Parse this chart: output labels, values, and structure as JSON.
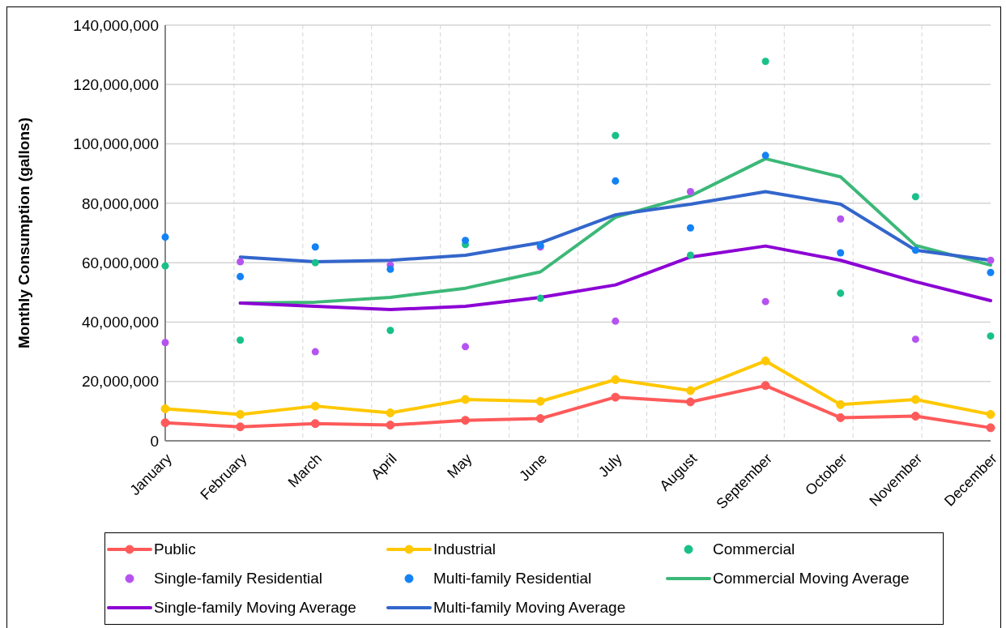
{
  "chart_data": {
    "type": "line",
    "ylabel": "Monthly Consumption (gallons)",
    "categories": [
      "January",
      "February",
      "March",
      "April",
      "May",
      "June",
      "July",
      "August",
      "September",
      "October",
      "November",
      "December"
    ],
    "ylim": [
      0,
      140000000
    ],
    "yticks": [
      0,
      {
        "value": 20000000,
        "label": "20,000,000"
      },
      {
        "value": 40000000,
        "label": "40,000,000"
      },
      {
        "value": 60000000,
        "label": "60,000,000"
      },
      {
        "value": 80000000,
        "label": "80,000,000"
      },
      {
        "value": 100000000,
        "label": "100,000,000"
      },
      {
        "value": 120000000,
        "label": "120,000,000"
      },
      {
        "value": 140000000,
        "label": "140,000,000"
      }
    ],
    "grid": true,
    "legend": "bottom",
    "series": [
      {
        "name": "Public",
        "marker": "circle",
        "color": "#ff5a5a",
        "values": [
          6100000,
          4700000,
          5800000,
          5300000,
          6900000,
          7500000,
          14700000,
          13100000,
          18600000,
          7800000,
          8300000,
          4400000
        ]
      },
      {
        "name": "Industrial",
        "marker": "circle",
        "color": "#ffc800",
        "values": [
          10800000,
          8900000,
          11700000,
          9400000,
          13900000,
          13300000,
          20600000,
          16900000,
          26900000,
          12200000,
          13900000,
          8900000
        ]
      },
      {
        "name": "Commercial",
        "type": "scatter",
        "marker": "circle",
        "color": "#19c08a",
        "values": [
          58900000,
          33900000,
          60000000,
          37200000,
          66100000,
          48000000,
          102800000,
          62500000,
          127800000,
          49700000,
          82200000,
          35300000
        ]
      },
      {
        "name": "Single-family Residential",
        "type": "scatter",
        "marker": "circle",
        "color": "#b553f0",
        "values": [
          33100000,
          60300000,
          30000000,
          59200000,
          31700000,
          65300000,
          40300000,
          83900000,
          46900000,
          74700000,
          34200000,
          60800000
        ]
      },
      {
        "name": "Multi-family Residential",
        "type": "scatter",
        "marker": "circle",
        "color": "#1482f5",
        "values": [
          68600000,
          55300000,
          65300000,
          57800000,
          67500000,
          65800000,
          87500000,
          71700000,
          96100000,
          63300000,
          64200000,
          56700000
        ]
      },
      {
        "name": "Commercial Moving Average",
        "marker": "none",
        "color": "#3cb878",
        "values": [
          null,
          46400000,
          46700000,
          48300000,
          51400000,
          56900000,
          75300000,
          82500000,
          95000000,
          88900000,
          65800000,
          59200000
        ]
      },
      {
        "name": "Single-family Moving Average",
        "marker": "none",
        "color": "#8c00d4",
        "values": [
          null,
          46400000,
          45300000,
          44200000,
          45300000,
          48300000,
          52500000,
          61900000,
          65600000,
          60800000,
          53600000,
          47200000
        ]
      },
      {
        "name": "Multi-family Moving Average",
        "marker": "none",
        "color": "#3366cc",
        "values": [
          null,
          61900000,
          60300000,
          60800000,
          62500000,
          66700000,
          76100000,
          79700000,
          83900000,
          79700000,
          64200000,
          60800000
        ]
      }
    ]
  }
}
